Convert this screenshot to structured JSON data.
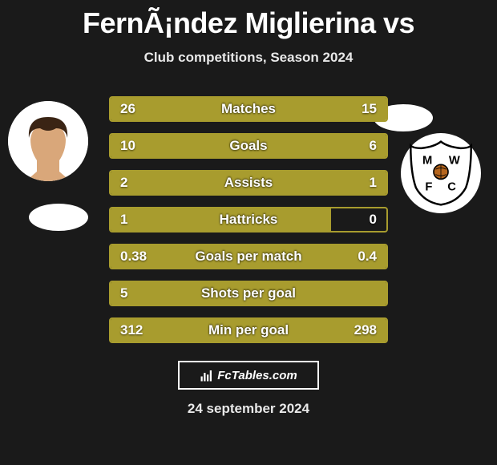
{
  "title": "FernÃ¡ndez Miglierina vs",
  "subtitle": "Club competitions, Season 2024",
  "site_label": "FcTables.com",
  "date": "24 september 2024",
  "colors": {
    "bar_left_fill": "#a89c2e",
    "bar_right_fill": "#a89c2e",
    "bar_border": "#a89c2e",
    "bar_bg": "transparent",
    "text": "#ffffff",
    "page_bg": "#1a1a1a"
  },
  "bars": [
    {
      "label": "Matches",
      "left_display": "26",
      "right_display": "15",
      "left_frac": 0.63,
      "right_frac": 0.37
    },
    {
      "label": "Goals",
      "left_display": "10",
      "right_display": "6",
      "left_frac": 0.63,
      "right_frac": 0.37
    },
    {
      "label": "Assists",
      "left_display": "2",
      "right_display": "1",
      "left_frac": 0.67,
      "right_frac": 0.33
    },
    {
      "label": "Hattricks",
      "left_display": "1",
      "right_display": "0",
      "left_frac": 0.8,
      "right_frac": 0.0
    },
    {
      "label": "Goals per match",
      "left_display": "0.38",
      "right_display": "0.4",
      "left_frac": 0.49,
      "right_frac": 0.51
    },
    {
      "label": "Shots per goal",
      "left_display": "5",
      "right_display": "",
      "left_frac": 1.0,
      "right_frac": 0.0
    },
    {
      "label": "Min per goal",
      "left_display": "312",
      "right_display": "298",
      "left_frac": 0.49,
      "right_frac": 0.51
    }
  ],
  "right_badge": {
    "letters": "M W F C"
  }
}
